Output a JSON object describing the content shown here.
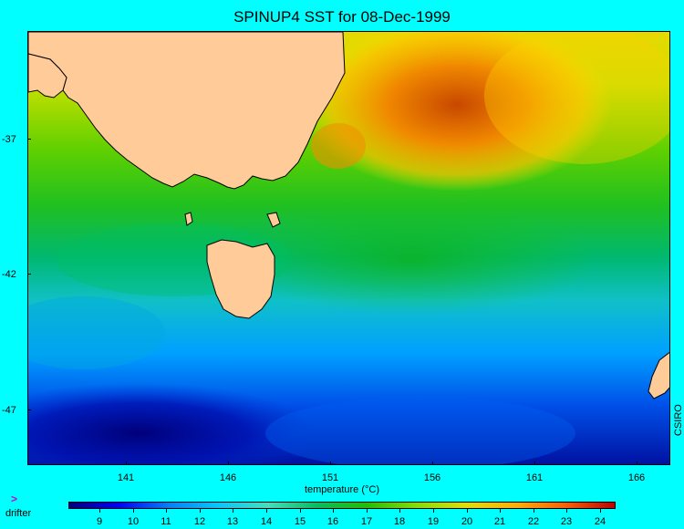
{
  "header": {
    "title": "SPINUP4 SST for 08-Dec-1999"
  },
  "map": {
    "lat_ticks": [
      "-37",
      "-42",
      "-47"
    ],
    "lon_ticks": [
      "141",
      "146",
      "151",
      "156",
      "161",
      "166"
    ],
    "land_color": "#ffcc99",
    "watermark": "CSIRO"
  },
  "legend": {
    "label": "temperature (°C)",
    "ticks": [
      "9",
      "10",
      "11",
      "12",
      "13",
      "14",
      "15",
      "16",
      "17",
      "18",
      "19",
      "20",
      "21",
      "22",
      "23",
      "24"
    ],
    "palette": [
      "#00007f",
      "#0000ff",
      "#0080ff",
      "#00c8ff",
      "#40e0c0",
      "#00c060",
      "#20c000",
      "#80e000",
      "#e0e000",
      "#ffb000",
      "#ff6000",
      "#c00000"
    ],
    "drifter_marker": ">",
    "drifter_label": "drifter"
  }
}
